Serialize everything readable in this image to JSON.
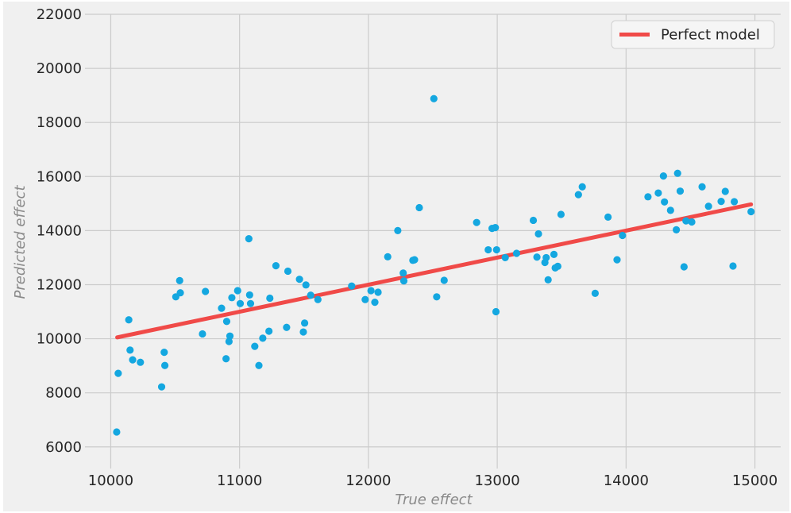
{
  "chart_data": {
    "type": "scatter",
    "title": "",
    "xlabel": "True effect",
    "ylabel": "Predicted effect",
    "xlim": [
      9800,
      15200
    ],
    "ylim": [
      5200,
      22000
    ],
    "xticks": [
      10000,
      11000,
      12000,
      13000,
      14000,
      15000
    ],
    "yticks": [
      6000,
      8000,
      10000,
      12000,
      14000,
      16000,
      18000,
      20000,
      22000
    ],
    "grid": true,
    "legend": {
      "position": "top-right",
      "entries": [
        "Perfect model"
      ]
    },
    "colors": {
      "points": "#14a7e0",
      "line": "#f04a48",
      "background": "#f0f0f0",
      "grid": "#cbcbcb"
    },
    "series": [
      {
        "kind": "points",
        "x": [
          10046,
          10058,
          10140,
          10150,
          10170,
          10230,
          10395,
          10415,
          10420,
          10505,
          10535,
          10540,
          10712,
          10735,
          10860,
          10895,
          10900,
          10918,
          10925,
          10940,
          10985,
          11005,
          11072,
          11078,
          11085,
          11118,
          11150,
          11180,
          11228,
          11235,
          11282,
          11365,
          11375,
          11465,
          11495,
          11505,
          11515,
          11552,
          11608,
          11870,
          11975,
          12020,
          12050,
          12075,
          12150,
          12228,
          12270,
          12275,
          12345,
          12358,
          12395,
          12508,
          12530,
          12588,
          12840,
          12930,
          12960,
          12985,
          12990,
          12995,
          13062,
          13150,
          13280,
          13308,
          13320,
          13370,
          13380,
          13395,
          13440,
          13450,
          13470,
          13495,
          13630,
          13660,
          13760,
          13860,
          13930,
          13972,
          14170,
          14250,
          14290,
          14298,
          14345,
          14390,
          14400,
          14420,
          14450,
          14465,
          14510,
          14590,
          14640,
          14738,
          14770,
          14830,
          14840,
          14970
        ],
        "y": [
          6550,
          8720,
          10700,
          9580,
          9220,
          9130,
          8220,
          9500,
          9010,
          11550,
          12150,
          11700,
          10180,
          11750,
          11130,
          9260,
          10640,
          9900,
          10100,
          11520,
          11780,
          11300,
          13700,
          11620,
          11300,
          9720,
          9010,
          10020,
          10280,
          11500,
          12700,
          10420,
          12500,
          12200,
          10250,
          10580,
          11990,
          11610,
          11450,
          11950,
          11450,
          11780,
          11350,
          11720,
          13030,
          14000,
          12430,
          12140,
          12900,
          12920,
          14850,
          18880,
          11550,
          12160,
          14300,
          13290,
          14080,
          14110,
          11000,
          13290,
          13000,
          13160,
          14380,
          13020,
          13880,
          12820,
          13000,
          12180,
          13120,
          12620,
          12680,
          14600,
          15330,
          15620,
          11680,
          14500,
          12920,
          13820,
          15250,
          15390,
          16020,
          15060,
          14750,
          14030,
          16120,
          15460,
          12660,
          14360,
          14320,
          15620,
          14900,
          15080,
          15450,
          12690,
          15070,
          14700
        ]
      },
      {
        "name": "Perfect model",
        "kind": "line",
        "x": [
          10050,
          14970
        ],
        "y": [
          10050,
          14970
        ]
      }
    ]
  }
}
